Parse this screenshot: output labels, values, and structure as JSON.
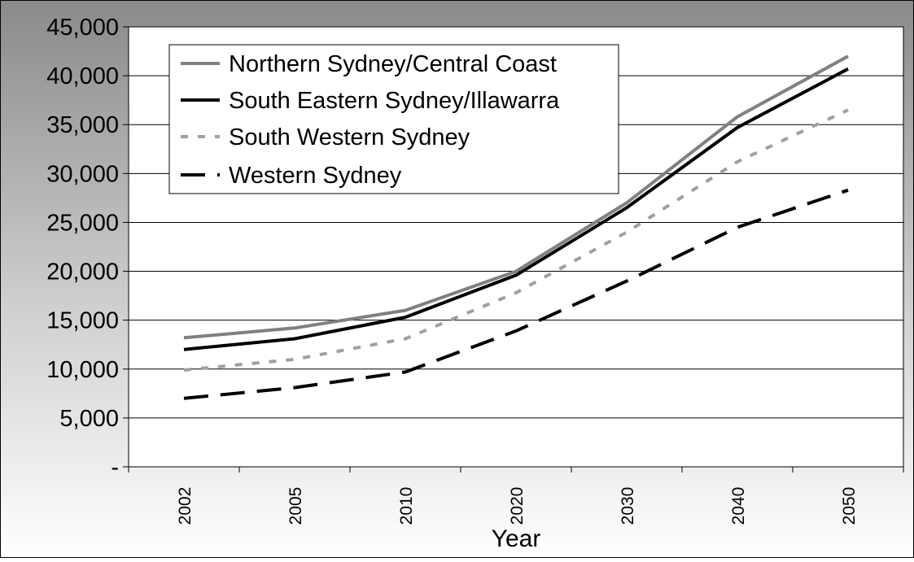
{
  "chart_data": {
    "type": "line",
    "xlabel": "Year",
    "ylabel": "",
    "categories": [
      "2002",
      "2005",
      "2010",
      "2020",
      "2030",
      "2040",
      "2050"
    ],
    "ylim": [
      0,
      45000
    ],
    "ytick_values": [
      0,
      5000,
      10000,
      15000,
      20000,
      25000,
      30000,
      35000,
      40000,
      45000
    ],
    "ytick_labels": [
      "-",
      "5,000",
      "10,000",
      "15,000",
      "20,000",
      "25,000",
      "30,000",
      "35,000",
      "40,000",
      "45,000"
    ],
    "grid": true,
    "legend_position": "top-left",
    "series": [
      {
        "name": "Northern Sydney/Central Coast",
        "values": [
          13200,
          14200,
          16000,
          20000,
          27000,
          35800,
          42000
        ],
        "color": "#808080",
        "style": "solid"
      },
      {
        "name": "South Eastern Sydney/Illawarra",
        "values": [
          12000,
          13100,
          15300,
          19600,
          26500,
          34700,
          40700
        ],
        "color": "#000000",
        "style": "solid"
      },
      {
        "name": "South Western Sydney",
        "values": [
          9900,
          11000,
          13100,
          17800,
          24000,
          31200,
          36500
        ],
        "color": "#a0a0a0",
        "style": "dotted"
      },
      {
        "name": "Western Sydney",
        "values": [
          7000,
          8100,
          9700,
          13900,
          19000,
          24500,
          28300
        ],
        "color": "#000000",
        "style": "dashed"
      }
    ]
  }
}
